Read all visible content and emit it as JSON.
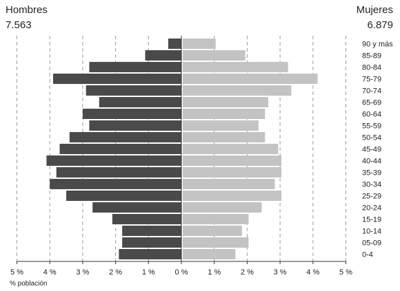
{
  "header": {
    "left_title": "Hombres",
    "left_total": "7.563",
    "right_title": "Mujeres",
    "right_total": "6.879"
  },
  "colors": {
    "men": "#4a4a4a",
    "women": "#c3c3c3",
    "gridline": "#9a9a9a",
    "axis": "#333333",
    "text": "#222222"
  },
  "chart_data": {
    "type": "bar",
    "orientation": "horizontal",
    "layout": "population-pyramid",
    "categories": [
      "0-4",
      "05-09",
      "10-14",
      "15-19",
      "20-24",
      "25-29",
      "30-34",
      "35-39",
      "40-44",
      "45-49",
      "50-54",
      "55-59",
      "60-64",
      "65-69",
      "70-74",
      "75-79",
      "80-84",
      "85-89",
      "90 y más"
    ],
    "series": [
      {
        "name": "Hombres",
        "side": "left",
        "values": [
          1.9,
          1.8,
          1.8,
          2.1,
          2.7,
          3.5,
          4.0,
          3.8,
          4.1,
          3.7,
          3.4,
          2.8,
          3.0,
          2.5,
          2.9,
          3.9,
          2.8,
          1.1,
          0.4
        ]
      },
      {
        "name": "Mujeres",
        "side": "right",
        "values": [
          1.6,
          2.0,
          1.8,
          2.0,
          2.4,
          3.0,
          2.8,
          3.0,
          3.0,
          2.9,
          2.5,
          2.3,
          2.5,
          2.6,
          3.3,
          4.1,
          3.2,
          1.9,
          1.0
        ]
      }
    ],
    "xlim": [
      -5,
      5
    ],
    "x_ticks": [
      "5 %",
      "4 %",
      "3 %",
      "2 %",
      "1 %",
      "0 %",
      "1 %",
      "2 %",
      "3 %",
      "4 %",
      "5 %"
    ],
    "xlabel": "% población",
    "ylabel": "",
    "grid": "vertical dashed at each 1%"
  }
}
